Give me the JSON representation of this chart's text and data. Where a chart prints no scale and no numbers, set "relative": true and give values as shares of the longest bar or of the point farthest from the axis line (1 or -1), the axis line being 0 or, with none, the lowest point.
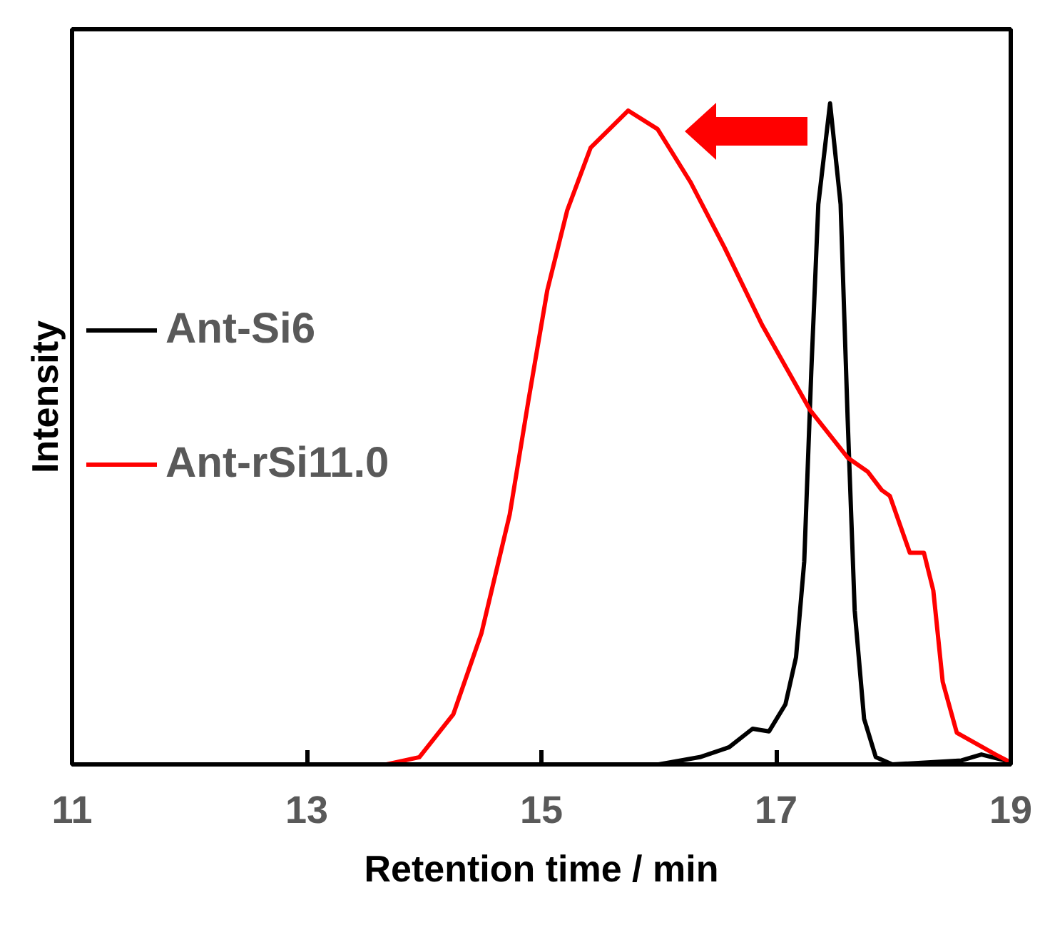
{
  "chart_data": {
    "type": "line",
    "xlabel": "Retention time / min",
    "ylabel": "Intensity",
    "relative": true,
    "xlim": [
      11,
      19
    ],
    "xticks": [
      11,
      13,
      15,
      17,
      19
    ],
    "legend": "left",
    "grid": false,
    "series": [
      {
        "name": "Ant-Si6",
        "color": "#000000",
        "x": [
          11,
          16.0,
          16.35,
          16.6,
          16.8,
          16.94,
          17.08,
          17.17,
          17.24,
          17.3,
          17.36,
          17.46,
          17.55,
          17.61,
          17.67,
          17.75,
          17.85,
          17.99,
          18.58,
          18.75,
          18.95,
          19
        ],
        "values": [
          0,
          0,
          0.011,
          0.026,
          0.054,
          0.05,
          0.091,
          0.162,
          0.307,
          0.594,
          0.847,
          1.0,
          0.847,
          0.523,
          0.233,
          0.069,
          0.011,
          0,
          0.006,
          0.015,
          0.006,
          0
        ]
      },
      {
        "name": "Ant-rSi11.0",
        "color": "#ff0000",
        "x": [
          11,
          13.68,
          13.96,
          14.25,
          14.49,
          14.73,
          14.89,
          15.05,
          15.22,
          15.42,
          15.74,
          15.99,
          16.27,
          16.56,
          16.88,
          17.29,
          17.61,
          17.78,
          17.9,
          17.97,
          18.14,
          18.26,
          18.34,
          18.42,
          18.54,
          18.7,
          18.87,
          18.99
        ],
        "values": [
          0,
          0,
          0.011,
          0.076,
          0.199,
          0.378,
          0.551,
          0.717,
          0.838,
          0.933,
          0.989,
          0.961,
          0.881,
          0.782,
          0.665,
          0.536,
          0.464,
          0.443,
          0.415,
          0.406,
          0.32,
          0.32,
          0.263,
          0.125,
          0.048,
          0.032,
          0.015,
          0.004
        ]
      }
    ]
  }
}
